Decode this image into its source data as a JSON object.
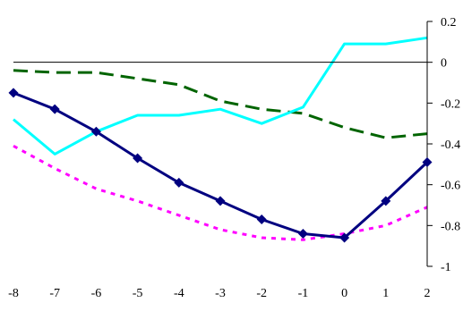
{
  "chart_data": {
    "type": "line",
    "title": "",
    "xlabel": "",
    "ylabel": "",
    "x": [
      -8,
      -7,
      -6,
      -5,
      -4,
      -3,
      -2,
      -1,
      0,
      1,
      2
    ],
    "x_tick_labels": [
      "-8",
      "-7",
      "-6",
      "-5",
      "-4",
      "-3",
      "-2",
      "-1",
      "0",
      "1",
      "2"
    ],
    "y_tick_labels": [
      "0.2",
      "0",
      "-0.2",
      "-0.4",
      "-0.6",
      "-0.8",
      "-1"
    ],
    "y_ticks": [
      0.2,
      0,
      -0.2,
      -0.4,
      -0.6,
      -0.8,
      -1
    ],
    "xlim": [
      -8,
      2
    ],
    "ylim": [
      -1,
      0.2
    ],
    "grid": false,
    "legend": "none",
    "zero_line": true,
    "series": [
      {
        "color": "#000080",
        "style": "solid",
        "marker": "diamond",
        "values": [
          -0.15,
          -0.23,
          -0.34,
          -0.47,
          -0.59,
          -0.68,
          -0.77,
          -0.84,
          -0.86,
          -0.68,
          -0.49
        ]
      },
      {
        "color": "#00FFFF",
        "style": "solid",
        "marker": "none",
        "values": [
          -0.28,
          -0.45,
          -0.34,
          -0.26,
          -0.26,
          -0.23,
          -0.3,
          -0.22,
          0.09,
          0.09,
          0.12
        ]
      },
      {
        "color": "#006400",
        "style": "dashed",
        "marker": "none",
        "values": [
          -0.04,
          -0.05,
          -0.05,
          -0.08,
          -0.11,
          -0.19,
          -0.23,
          -0.25,
          -0.32,
          -0.37,
          -0.35
        ]
      },
      {
        "color": "#FF00FF",
        "style": "dotted",
        "marker": "none",
        "values": [
          -0.41,
          -0.52,
          -0.62,
          -0.68,
          -0.75,
          -0.82,
          -0.86,
          -0.87,
          -0.84,
          -0.8,
          -0.71
        ]
      }
    ]
  }
}
